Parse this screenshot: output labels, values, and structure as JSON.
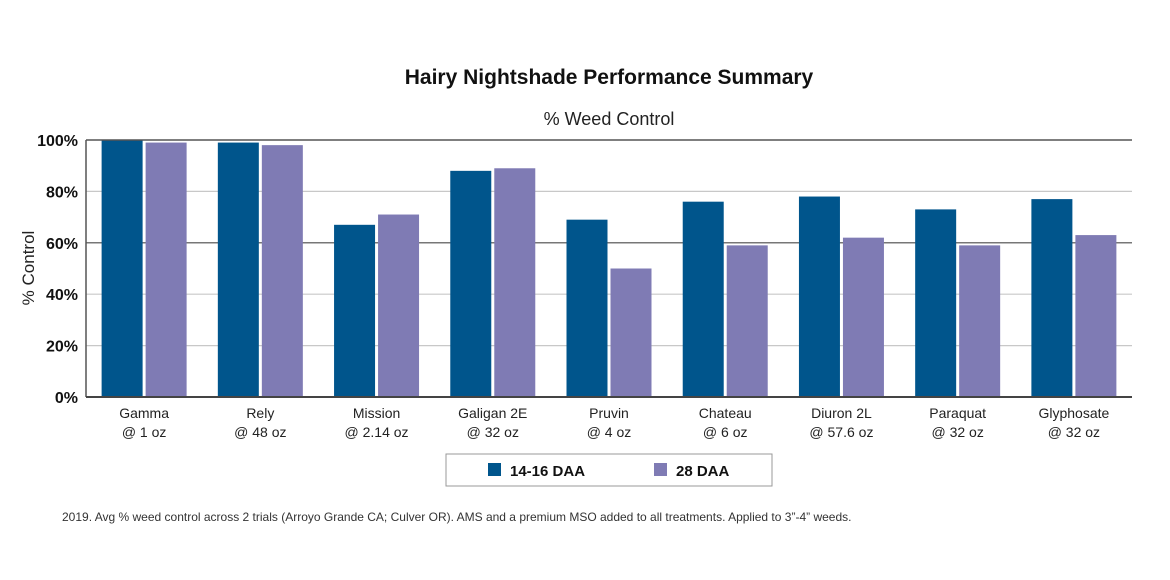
{
  "chart_data": {
    "type": "bar",
    "title": "Hairy Nightshade Performance Summary",
    "subtitle": "% Weed Control",
    "xlabel": "",
    "ylabel": "% Control",
    "ylim": [
      0,
      100
    ],
    "yticks": [
      0,
      20,
      40,
      60,
      80,
      100
    ],
    "ytick_labels": [
      "0%",
      "20%",
      "40%",
      "60%",
      "80%",
      "100%"
    ],
    "grid": true,
    "categories": [
      [
        "Gamma",
        "@ 1 oz"
      ],
      [
        "Rely",
        "@ 48 oz"
      ],
      [
        "Mission",
        "@ 2.14 oz"
      ],
      [
        "Galigan 2E",
        "@ 32 oz"
      ],
      [
        "Pruvin",
        "@ 4 oz"
      ],
      [
        "Chateau",
        "@ 6 oz"
      ],
      [
        "Diuron 2L",
        "@ 57.6 oz"
      ],
      [
        "Paraquat",
        "@ 32 oz"
      ],
      [
        "Glyphosate",
        "@ 32 oz"
      ]
    ],
    "series": [
      {
        "name": "14-16 DAA",
        "color": "#00558c",
        "values": [
          100,
          99,
          67,
          88,
          69,
          76,
          78,
          73,
          77
        ]
      },
      {
        "name": "28 DAA",
        "color": "#7f7bb4",
        "values": [
          99,
          98,
          71,
          89,
          50,
          59,
          62,
          59,
          63
        ]
      }
    ],
    "legend_position": "bottom-center",
    "footnote": "2019. Avg % weed control across 2 trials (Arroyo Grande CA; Culver OR). AMS and a premium MSO added to all treatments. Applied to 3”-4” weeds."
  }
}
